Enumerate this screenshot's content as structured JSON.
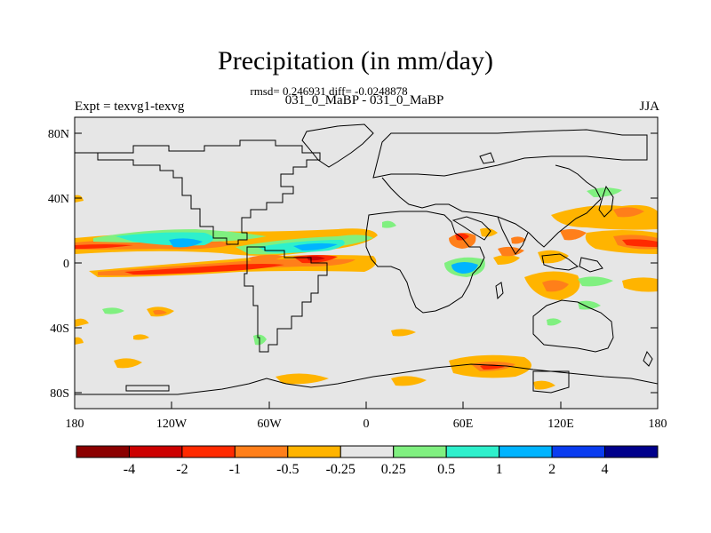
{
  "header": {
    "title": "Precipitation (in mm/day)",
    "stats": "rmsd= 0.246931 diff= -0.0248878",
    "comparison": "031_0_MaBP - 031_0_MaBP",
    "experiment": "Expt = texvg1-texvg",
    "season": "JJA"
  },
  "axes": {
    "lat_ticks": [
      "80N",
      "40N",
      "0",
      "40S",
      "80S"
    ],
    "lon_ticks": [
      "180",
      "120W",
      "60W",
      "0",
      "60E",
      "120E",
      "180"
    ]
  },
  "legend": {
    "colors": [
      "#8b0000",
      "#cc0000",
      "#ff2a00",
      "#ff7f1a",
      "#ffb400",
      "#e6e6e6",
      "#80f080",
      "#2ef0cc",
      "#00b4ff",
      "#0a3cf0",
      "#00008b"
    ],
    "labels": [
      "-4",
      "-2",
      "-1",
      "-0.5",
      "-0.25",
      "0.25",
      "0.5",
      "1",
      "2",
      "4"
    ]
  },
  "colors": {
    "background": "#e6e6e6",
    "coastline": "#000000"
  }
}
